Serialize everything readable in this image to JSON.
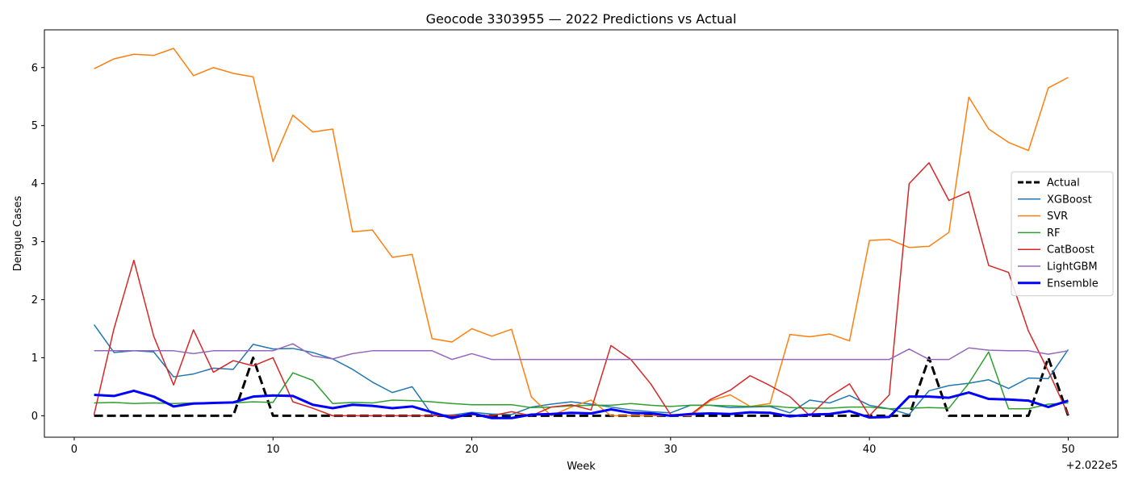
{
  "chart_data": {
    "type": "line",
    "title": "Geocode 3303955 — 2022 Predictions vs Actual",
    "xlabel": "Week",
    "ylabel": "Dengue Cases",
    "x_offset_label": "+2.022e5",
    "xlim": [
      -1.5,
      52.5
    ],
    "ylim": [
      -0.37,
      6.65
    ],
    "x_ticks": [
      0,
      10,
      20,
      30,
      40,
      50
    ],
    "y_ticks": [
      0,
      1,
      2,
      3,
      4,
      5,
      6
    ],
    "grid": false,
    "legend_position": "center-right",
    "x": [
      1,
      2,
      3,
      4,
      5,
      6,
      7,
      8,
      9,
      10,
      11,
      12,
      13,
      14,
      15,
      16,
      17,
      18,
      19,
      20,
      21,
      22,
      23,
      24,
      25,
      26,
      27,
      28,
      29,
      30,
      31,
      32,
      33,
      34,
      35,
      36,
      37,
      38,
      39,
      40,
      41,
      42,
      43,
      44,
      45,
      46,
      47,
      48,
      49,
      50
    ],
    "series": [
      {
        "name": "Actual",
        "color": "#000000",
        "style": "dashed",
        "width": 3,
        "values": [
          0,
          0,
          0,
          0,
          0,
          0,
          0,
          0,
          1,
          0,
          0,
          0,
          0,
          0,
          0,
          0,
          0,
          0,
          0,
          0,
          0,
          0,
          0,
          0,
          0,
          0,
          0,
          0,
          0,
          0,
          0,
          0,
          0,
          0,
          0,
          0,
          0,
          0,
          0,
          0,
          0,
          0,
          1,
          0,
          0,
          0,
          0,
          0,
          1,
          0
        ]
      },
      {
        "name": "XGBoost",
        "color": "#1f77b4",
        "style": "solid",
        "width": 1.5,
        "values": [
          1.57,
          1.09,
          1.12,
          1.1,
          0.67,
          0.72,
          0.82,
          0.8,
          1.23,
          1.15,
          1.16,
          1.09,
          0.98,
          0.8,
          0.58,
          0.4,
          0.5,
          0.02,
          0.01,
          0.06,
          0.03,
          0.02,
          0.15,
          0.2,
          0.24,
          0.2,
          0.15,
          0.1,
          0.07,
          0.05,
          0.18,
          0.18,
          0.14,
          0.15,
          0.16,
          0.05,
          0.27,
          0.22,
          0.35,
          0.18,
          0.12,
          0.02,
          0.43,
          0.52,
          0.56,
          0.62,
          0.47,
          0.65,
          0.64,
          1.14
        ]
      },
      {
        "name": "SVR",
        "color": "#ff7f0e",
        "style": "solid",
        "width": 1.5,
        "values": [
          5.98,
          6.15,
          6.23,
          6.21,
          6.33,
          5.86,
          6.0,
          5.9,
          5.84,
          4.38,
          5.18,
          4.89,
          4.94,
          3.17,
          3.2,
          2.73,
          2.78,
          1.33,
          1.27,
          1.5,
          1.37,
          1.49,
          0.32,
          0.0,
          0.15,
          0.27,
          0.0,
          0.0,
          0.0,
          0.0,
          0.0,
          0.26,
          0.36,
          0.16,
          0.21,
          1.4,
          1.36,
          1.41,
          1.29,
          3.02,
          3.04,
          2.9,
          2.92,
          3.16,
          5.49,
          4.94,
          4.71,
          4.57,
          5.65,
          5.83
        ]
      },
      {
        "name": "RF",
        "color": "#2ca02c",
        "style": "solid",
        "width": 1.5,
        "values": [
          0.22,
          0.23,
          0.21,
          0.22,
          0.21,
          0.22,
          0.22,
          0.22,
          0.24,
          0.23,
          0.74,
          0.61,
          0.21,
          0.23,
          0.22,
          0.27,
          0.26,
          0.24,
          0.21,
          0.19,
          0.19,
          0.19,
          0.14,
          0.15,
          0.17,
          0.18,
          0.18,
          0.21,
          0.18,
          0.16,
          0.18,
          0.18,
          0.17,
          0.16,
          0.17,
          0.14,
          0.13,
          0.13,
          0.15,
          0.15,
          0.12,
          0.13,
          0.14,
          0.13,
          0.56,
          1.1,
          0.12,
          0.12,
          0.2,
          0.22
        ]
      },
      {
        "name": "CatBoost",
        "color": "#d62728",
        "style": "solid",
        "width": 1.5,
        "values": [
          0.02,
          1.5,
          2.68,
          1.37,
          0.53,
          1.48,
          0.75,
          0.95,
          0.86,
          1.0,
          0.24,
          0.13,
          0.0,
          0.0,
          0.0,
          0.0,
          0.0,
          0.0,
          0.0,
          0.02,
          0.0,
          0.07,
          0.0,
          0.15,
          0.19,
          0.1,
          1.21,
          0.97,
          0.55,
          0.02,
          0.02,
          0.28,
          0.44,
          0.69,
          0.52,
          0.33,
          0.0,
          0.33,
          0.55,
          0.0,
          0.36,
          4.0,
          4.36,
          3.71,
          3.86,
          2.59,
          2.47,
          1.46,
          0.77,
          0.02
        ]
      },
      {
        "name": "LightGBM",
        "color": "#9467bd",
        "style": "solid",
        "width": 1.5,
        "values": [
          1.12,
          1.12,
          1.12,
          1.12,
          1.12,
          1.07,
          1.12,
          1.12,
          1.12,
          1.12,
          1.24,
          1.03,
          0.98,
          1.07,
          1.12,
          1.12,
          1.12,
          1.12,
          0.97,
          1.07,
          0.97,
          0.97,
          0.97,
          0.97,
          0.97,
          0.97,
          0.97,
          0.97,
          0.97,
          0.97,
          0.97,
          0.97,
          0.97,
          0.97,
          0.97,
          0.97,
          0.97,
          0.97,
          0.97,
          0.97,
          0.97,
          1.15,
          0.97,
          0.97,
          1.17,
          1.13,
          1.12,
          1.12,
          1.06,
          1.12
        ]
      },
      {
        "name": "Ensemble",
        "color": "#0000ff",
        "style": "solid",
        "width": 3,
        "values": [
          0.36,
          0.34,
          0.43,
          0.33,
          0.16,
          0.21,
          0.22,
          0.23,
          0.33,
          0.35,
          0.34,
          0.19,
          0.13,
          0.19,
          0.17,
          0.13,
          0.16,
          0.06,
          -0.04,
          0.04,
          -0.04,
          -0.04,
          0.02,
          0.03,
          0.05,
          0.04,
          0.11,
          0.05,
          0.04,
          0.0,
          0.03,
          0.04,
          0.03,
          0.06,
          0.05,
          -0.01,
          0.02,
          0.03,
          0.08,
          -0.03,
          -0.02,
          0.33,
          0.33,
          0.31,
          0.4,
          0.29,
          0.28,
          0.26,
          0.15,
          0.26
        ]
      }
    ]
  }
}
